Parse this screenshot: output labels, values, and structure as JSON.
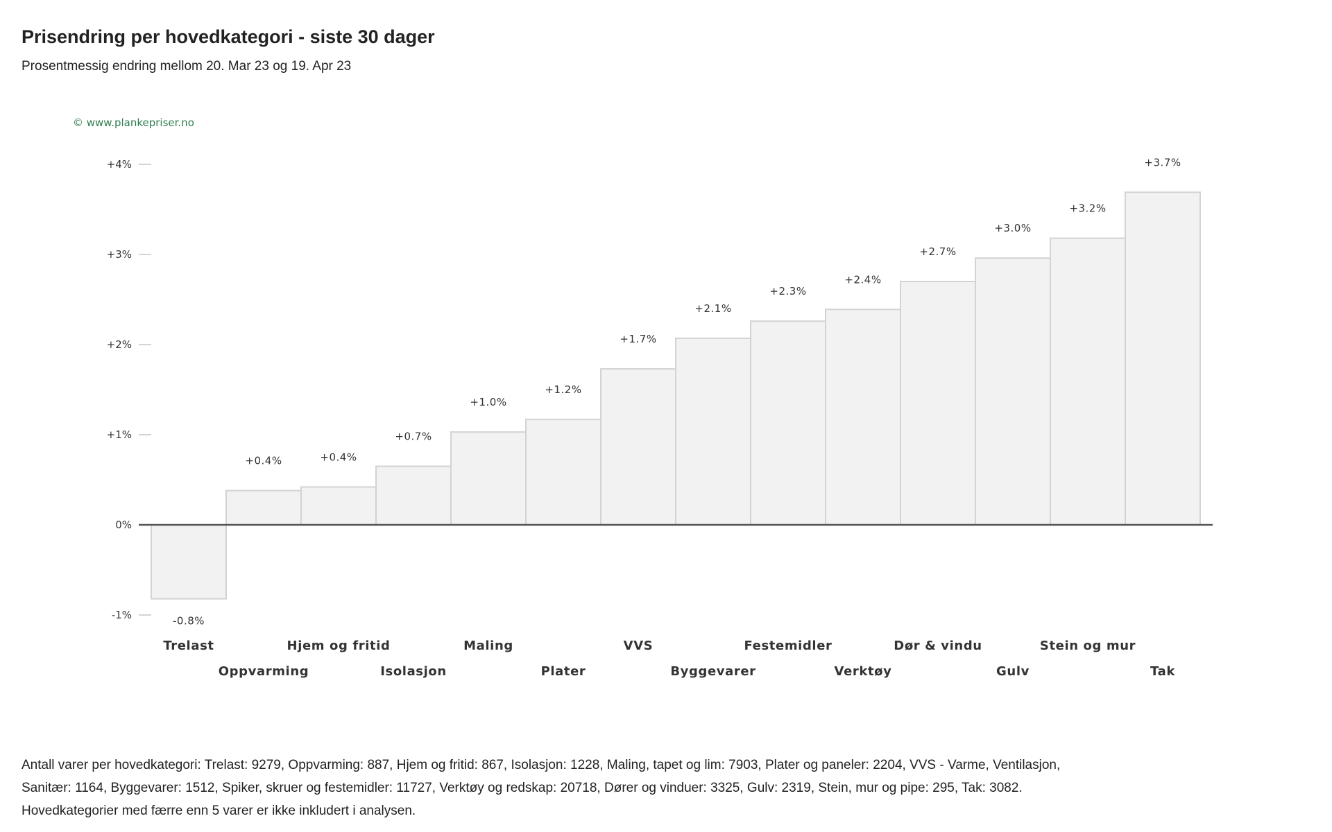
{
  "header": {
    "title": "Prisendring per hovedkategori - siste 30 dager",
    "subtitle": "Prosentmessig endring mellom 20. Mar 23 og 19. Apr 23"
  },
  "watermark": "© www.plankepriser.no",
  "colors": {
    "bar_fill": "#f2f2f2",
    "bar_stroke": "#d3d3d3",
    "baseline": "#555555",
    "watermark": "#2e7d4f",
    "text": "#333333"
  },
  "chart_data": {
    "type": "bar",
    "title": "",
    "xlabel": "",
    "ylabel": "",
    "ylim": [
      -1.05,
      4.2
    ],
    "grid": false,
    "legend": "none",
    "y_ticks": [
      {
        "value": 4,
        "label": "+4%"
      },
      {
        "value": 3,
        "label": "+3%"
      },
      {
        "value": 2,
        "label": "+2%"
      },
      {
        "value": 1,
        "label": "+1%"
      },
      {
        "value": 0,
        "label": "0%"
      },
      {
        "value": -1,
        "label": "-1%"
      }
    ],
    "categories": [
      "Trelast",
      "Oppvarming",
      "Hjem og fritid",
      "Isolasjon",
      "Maling",
      "Plater",
      "VVS",
      "Byggevarer",
      "Festemidler",
      "Verktøy",
      "Dør & vindu",
      "Gulv",
      "Stein og mur",
      "Tak"
    ],
    "values": [
      -0.82,
      0.38,
      0.42,
      0.65,
      1.03,
      1.17,
      1.73,
      2.07,
      2.26,
      2.39,
      2.7,
      2.96,
      3.18,
      3.69
    ],
    "data_labels": [
      "-0.8%",
      "+0.4%",
      "+0.4%",
      "+0.7%",
      "+1.0%",
      "+1.2%",
      "+1.7%",
      "+2.1%",
      "+2.3%",
      "+2.4%",
      "+2.7%",
      "+3.0%",
      "+3.2%",
      "+3.7%"
    ]
  },
  "footnote": {
    "line1": "Antall varer per hovedkategori: Trelast: 9279, Oppvarming: 887, Hjem og fritid: 867, Isolasjon: 1228, Maling, tapet og lim: 7903, Plater og paneler: 2204, VVS - Varme, Ventilasjon, Sanitær: 1164, Byggevarer: 1512, Spiker, skruer og festemidler: 11727, Verktøy og redskap: 20718, Dører og vinduer: 3325, Gulv: 2319, Stein, mur og pipe: 295, Tak: 3082.",
    "line2": "Hovedkategorier med færre enn 5 varer er ikke inkludert i analysen."
  }
}
